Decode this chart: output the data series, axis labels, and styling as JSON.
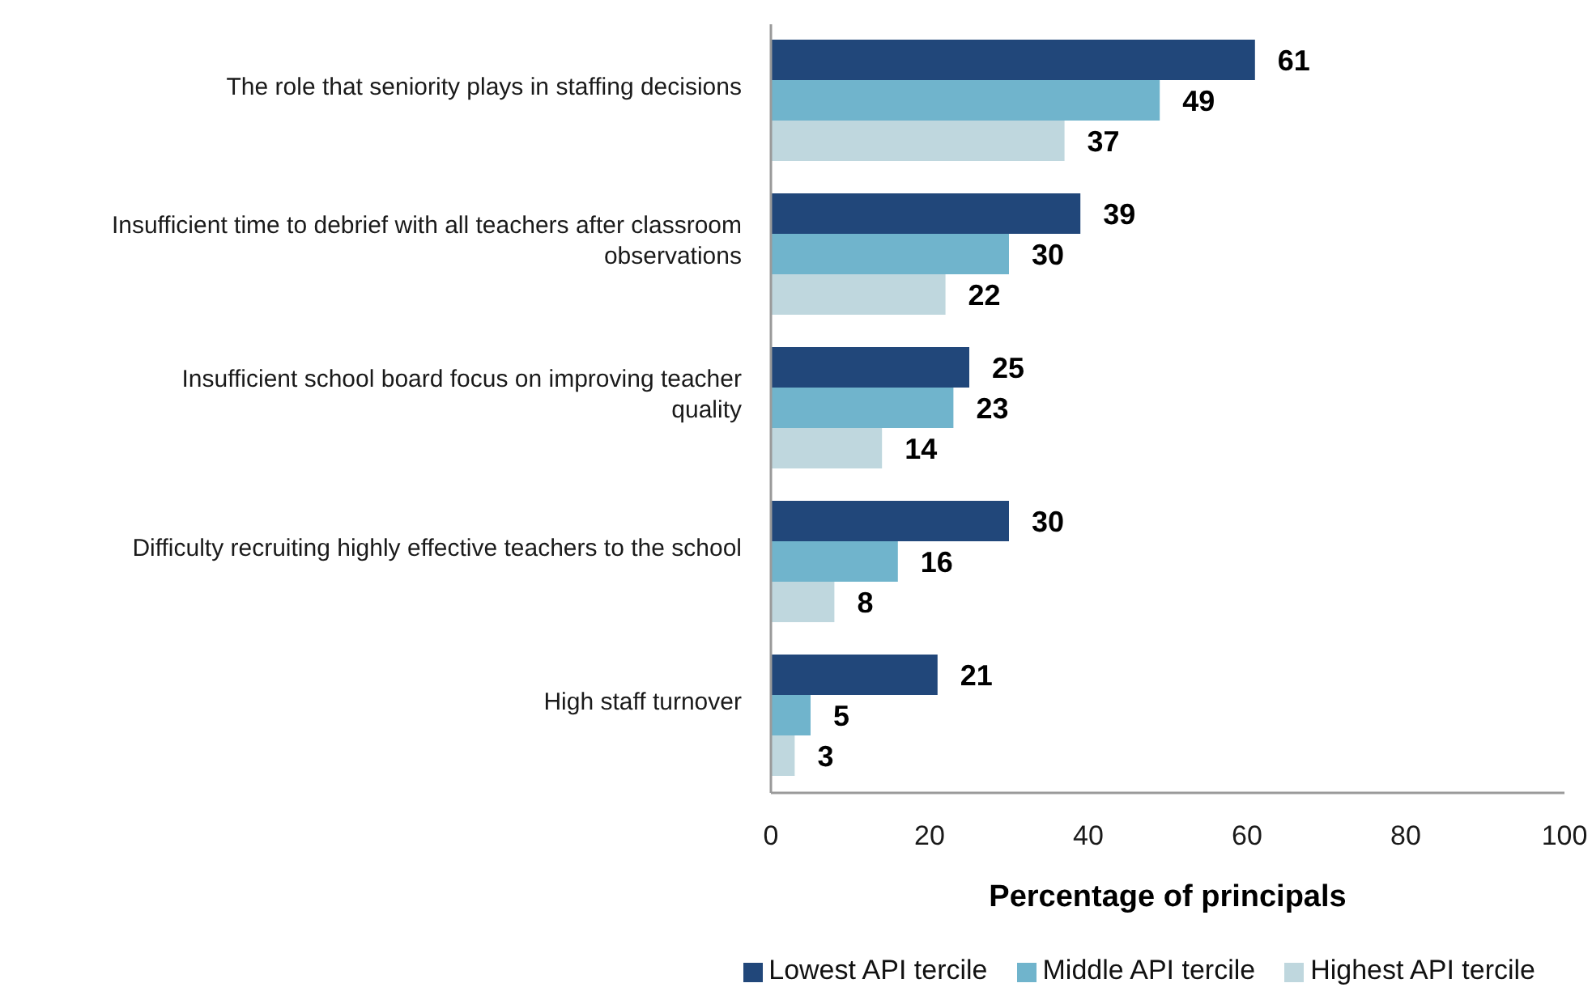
{
  "chart_data": {
    "type": "bar",
    "orientation": "horizontal",
    "categories": [
      "The role that seniority plays in staffing decisions",
      "Insufficient time to debrief with all teachers after classroom observations",
      "Insufficient school board focus on improving teacher quality",
      "Difficulty recruiting highly effective teachers to the school",
      "High staff turnover"
    ],
    "series": [
      {
        "name": "Lowest API tercile",
        "color": "#21477a",
        "values": [
          61,
          39,
          25,
          30,
          21
        ]
      },
      {
        "name": "Middle API tercile",
        "color": "#70b4cc",
        "values": [
          49,
          30,
          23,
          16,
          5
        ]
      },
      {
        "name": "Highest API tercile",
        "color": "#bfd7de",
        "values": [
          37,
          22,
          14,
          8,
          3
        ]
      }
    ],
    "xlabel": "Percentage of principals",
    "xlim": [
      0,
      100
    ],
    "xticks": [
      0,
      20,
      40,
      60,
      80,
      100
    ],
    "data_labels": true,
    "legend": "bottom right"
  }
}
